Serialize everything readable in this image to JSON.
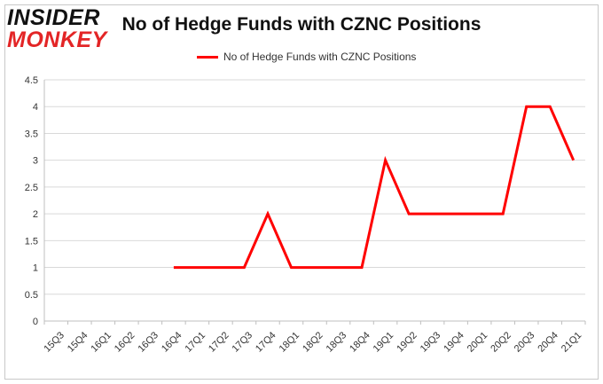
{
  "logo": {
    "line1": "INSIDER",
    "line2": "MONKEY"
  },
  "chart_data": {
    "type": "line",
    "title": "No of Hedge Funds with CZNC Positions",
    "xlabel": "",
    "ylabel": "",
    "ylim": [
      0,
      4.5
    ],
    "yticks": [
      "0",
      "0.5",
      "1",
      "1.5",
      "2",
      "2.5",
      "3",
      "3.5",
      "4",
      "4.5"
    ],
    "categories": [
      "15Q3",
      "15Q4",
      "16Q1",
      "16Q2",
      "16Q3",
      "16Q4",
      "17Q1",
      "17Q2",
      "17Q3",
      "17Q4",
      "18Q1",
      "18Q2",
      "18Q3",
      "18Q4",
      "19Q1",
      "19Q2",
      "19Q3",
      "19Q4",
      "20Q1",
      "20Q2",
      "20Q3",
      "20Q4",
      "21Q1"
    ],
    "series": [
      {
        "name": "No of Hedge Funds with CZNC Positions",
        "color": "#ff0000",
        "values": [
          null,
          null,
          null,
          null,
          null,
          1,
          1,
          1,
          1,
          2,
          1,
          1,
          1,
          1,
          3,
          2,
          2,
          2,
          2,
          2,
          4,
          4,
          3
        ]
      }
    ],
    "grid": true,
    "legend_position": "top"
  }
}
